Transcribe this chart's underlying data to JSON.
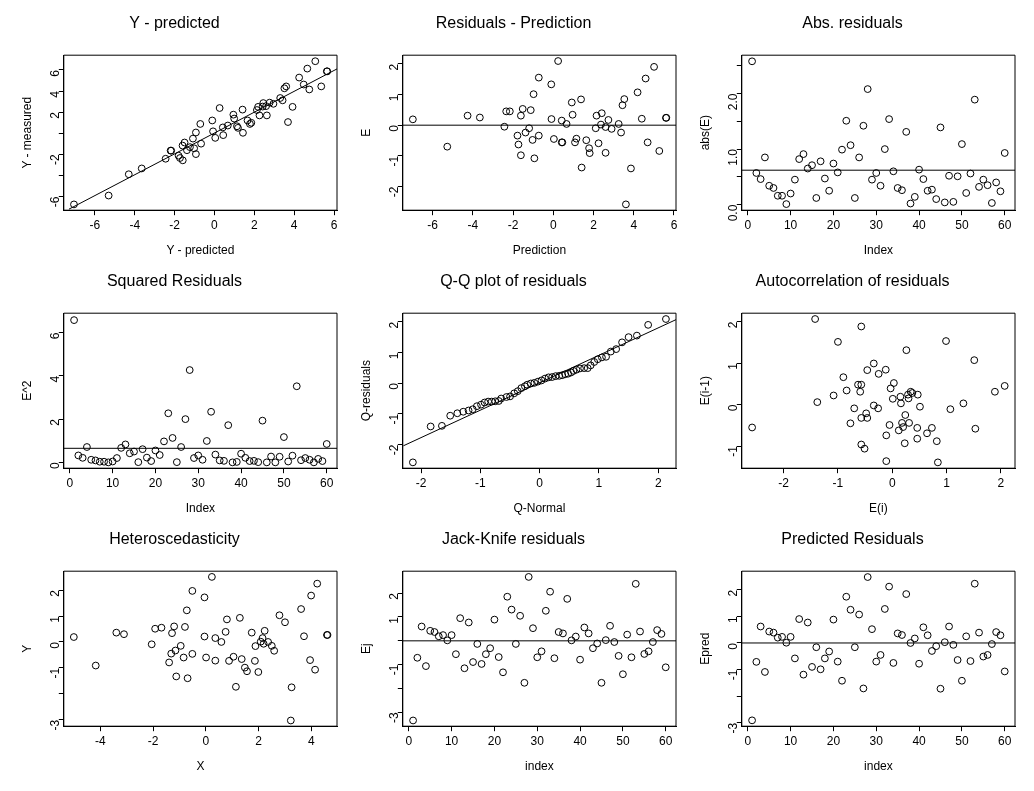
{
  "chart_data": [
    {
      "type": "scatter",
      "title": "Y - predicted",
      "xlabel": "Y - predicted",
      "ylabel": "Y - measured",
      "marker": "circle",
      "xlim": [
        -7.56,
        6.15
      ],
      "ylim": [
        -7.3,
        7.4
      ],
      "xticks": [
        -6,
        -4,
        -2,
        0,
        2,
        4,
        6
      ],
      "yticks": [
        -6,
        {
          "value": -4,
          "label": null
        },
        -2,
        {
          "value": 0,
          "label": null
        },
        2,
        4,
        6
      ],
      "series": [
        {
          "color": "#000000",
          "x": [
            -7.05,
            -5.31,
            -4.3,
            -3.65,
            -2.45,
            -2.2,
            -2.17,
            -1.8,
            -1.73,
            -1.59,
            -1.6,
            -1.5,
            -1.38,
            -1.23,
            -1.08,
            -1.02,
            -0.93,
            -0.93,
            -0.67,
            -0.71,
            -0.11,
            -0.07,
            0.04,
            0.26,
            0.42,
            0.44,
            0.67,
            0.95,
            0.99,
            1.13,
            1.18,
            1.41,
            1.43,
            1.66,
            1.78,
            1.85,
            2.13,
            2.19,
            2.26,
            2.42,
            2.45,
            2.59,
            2.63,
            2.77,
            2.96,
            3.3,
            3.42,
            3.51,
            3.6,
            3.69,
            3.92,
            4.25,
            4.48,
            4.66,
            4.76,
            5.06,
            5.36,
            5.64,
            5.66
          ],
          "values": [
            -6.75,
            -5.91,
            -3.89,
            -3.34,
            -2.42,
            -1.65,
            -1.65,
            -2.13,
            -2.35,
            -2.57,
            -1.17,
            -0.88,
            -1.61,
            -1.32,
            -0.51,
            -1.43,
            -1.98,
            0.07,
            -0.99,
            0.88,
            1.21,
            0.18,
            -0.44,
            2.39,
            0.55,
            -0.18,
            0.73,
            1.76,
            1.39,
            0.66,
            0.51,
            2.24,
            0.04,
            1.21,
            0.88,
            0.99,
            2.2,
            2.5,
            1.69,
            2.53,
            2.86,
            2.57,
            1.69,
            2.9,
            2.79,
            3.34,
            3.12,
            4.26,
            4.44,
            1.06,
            2.5,
            5.28,
            4.62,
            6.13,
            4.15,
            6.83,
            4.44,
            5.87,
            5.87
          ]
        },
        {
          "type": "line",
          "color": "#000000",
          "marker": "none",
          "x": [
            -7.3,
            6.15
          ],
          "values": [
            -7.2,
            6.1
          ]
        }
      ]
    },
    {
      "type": "scatter",
      "title": "Residuals - Prediction",
      "xlabel": "Prediction",
      "ylabel": "E",
      "marker": "circle",
      "xlim": [
        -7.48,
        6.1
      ],
      "ylim": [
        -2.77,
        2.28
      ],
      "xticks": [
        -6,
        -4,
        -2,
        0,
        2,
        4,
        6
      ],
      "yticks": [
        -2,
        -1,
        0,
        1,
        2
      ],
      "ref_lines": [
        {
          "axis": "y",
          "value": 0,
          "color": "#000000"
        }
      ],
      "series": [
        {
          "color": "#000000",
          "x": [
            -6.98,
            -5.27,
            -4.26,
            -3.65,
            -2.43,
            -2.34,
            -2.16,
            -1.78,
            -1.73,
            -1.61,
            -1.61,
            -1.52,
            -1.38,
            -1.2,
            -1.12,
            -1.03,
            -0.98,
            -0.94,
            -0.72,
            -0.72,
            -0.1,
            -0.09,
            0.03,
            0.24,
            0.42,
            0.42,
            0.45,
            0.66,
            0.92,
            0.96,
            1.08,
            1.15,
            1.38,
            1.41,
            1.64,
            1.78,
            1.81,
            2.11,
            2.15,
            2.25,
            2.41,
            2.37,
            2.6,
            2.6,
            2.74,
            2.9,
            3.25,
            3.37,
            3.44,
            3.53,
            3.61,
            3.86,
            4.19,
            4.4,
            4.59,
            4.69,
            5.01,
            5.27,
            5.6,
            5.62
          ],
          "values": [
            0.19,
            -0.7,
            0.31,
            0.25,
            -0.05,
            0.45,
            0.45,
            -0.34,
            -0.63,
            -0.98,
            0.31,
            0.53,
            -0.24,
            -0.1,
            0.49,
            -0.48,
            1.01,
            -1.08,
            1.55,
            -0.34,
            1.33,
            0.2,
            -0.45,
            2.09,
            0.15,
            -0.56,
            -0.56,
            0.04,
            0.74,
            0.34,
            -0.56,
            -0.44,
            0.84,
            -1.38,
            -0.49,
            -0.75,
            -0.91,
            -0.1,
            0.31,
            -0.59,
            0.39,
            0.02,
            -0.06,
            -0.9,
            0.17,
            -0.12,
            0.04,
            -0.24,
            0.65,
            0.85,
            -2.58,
            -1.41,
            1.07,
            0.21,
            1.52,
            -0.56,
            1.9,
            -0.84,
            0.24,
            0.24
          ]
        }
      ]
    },
    {
      "type": "scatter",
      "title": "Abs. residuals",
      "xlabel": "Index",
      "ylabel": "abs(E)",
      "marker": "circle",
      "xlim": [
        -1.4,
        62.4
      ],
      "ylim": [
        -0.1,
        2.69
      ],
      "xticks": [
        0,
        10,
        20,
        30,
        40,
        50,
        60
      ],
      "yticks": [
        {
          "value": 0,
          "label": "0.0"
        },
        {
          "value": 0.5,
          "label": null
        },
        {
          "value": 1,
          "label": "1.0"
        },
        {
          "value": 1.5,
          "label": null
        },
        {
          "value": 2,
          "label": "2.0"
        },
        {
          "value": 2.5,
          "label": null
        }
      ],
      "ref_lines": [
        {
          "axis": "y",
          "value": 0.62,
          "color": "#000000"
        }
      ],
      "series": [
        {
          "color": "#000000",
          "x": [
            1,
            2,
            3,
            4,
            5,
            6,
            7,
            8,
            9,
            10,
            11,
            12,
            13,
            14,
            15,
            16,
            17,
            18,
            19,
            20,
            21,
            22,
            23,
            24,
            25,
            26,
            27,
            28,
            29,
            30,
            31,
            32,
            33,
            34,
            35,
            36,
            37,
            38,
            39,
            40,
            41,
            42,
            43,
            44,
            45,
            46,
            47,
            48,
            49,
            50,
            51,
            52,
            53,
            54,
            55,
            56,
            57,
            58,
            59,
            60
          ],
          "values": [
            2.58,
            0.57,
            0.46,
            0.85,
            0.34,
            0.3,
            0.16,
            0.16,
            0.01,
            0.2,
            0.45,
            0.82,
            0.91,
            0.65,
            0.71,
            0.12,
            0.78,
            0.47,
            0.25,
            0.74,
            0.58,
            0.99,
            1.51,
            1.07,
            0.12,
            0.85,
            1.42,
            2.08,
            0.45,
            0.57,
            0.34,
            1.0,
            1.54,
            0.6,
            0.3,
            0.26,
            1.31,
            0.02,
            0.14,
            0.63,
            0.46,
            0.25,
            0.27,
            0.1,
            1.39,
            0.04,
            0.52,
            0.05,
            0.51,
            1.09,
            0.21,
            0.56,
            1.89,
            0.32,
            0.45,
            0.35,
            0.03,
            0.4,
            0.24,
            0.93
          ]
        }
      ]
    },
    {
      "type": "scatter",
      "title": "Squared Residuals",
      "xlabel": "Index",
      "ylabel": "E^2",
      "marker": "circle",
      "xlim": [
        -1.4,
        62.4
      ],
      "ylim": [
        -0.27,
        6.9
      ],
      "xticks": [
        0,
        10,
        20,
        30,
        40,
        50,
        60
      ],
      "yticks": [
        0,
        2,
        4,
        6
      ],
      "ref_lines": [
        {
          "axis": "y",
          "value": 0.65,
          "color": "#000000"
        }
      ],
      "series": [
        {
          "color": "#000000",
          "x": [
            1,
            2,
            3,
            4,
            5,
            6,
            7,
            8,
            9,
            10,
            11,
            12,
            13,
            14,
            15,
            16,
            17,
            18,
            19,
            20,
            21,
            22,
            23,
            24,
            25,
            26,
            27,
            28,
            29,
            30,
            31,
            32,
            33,
            34,
            35,
            36,
            37,
            38,
            39,
            40,
            41,
            42,
            43,
            44,
            45,
            46,
            47,
            48,
            49,
            50,
            51,
            52,
            53,
            54,
            55,
            56,
            57,
            58,
            59,
            60
          ],
          "values": [
            6.58,
            0.32,
            0.21,
            0.71,
            0.12,
            0.09,
            0.03,
            0.03,
            0,
            0.04,
            0.2,
            0.67,
            0.83,
            0.42,
            0.5,
            0.01,
            0.61,
            0.22,
            0.06,
            0.55,
            0.34,
            0.97,
            2.27,
            1.13,
            0.01,
            0.71,
            2.0,
            4.27,
            0.2,
            0.32,
            0.12,
            0.99,
            2.34,
            0.36,
            0.09,
            0.07,
            1.72,
            0,
            0.02,
            0.4,
            0.21,
            0.06,
            0.07,
            0.01,
            1.93,
            0,
            0.27,
            0,
            0.26,
            1.17,
            0.04,
            0.31,
            3.52,
            0.1,
            0.2,
            0.12,
            0,
            0.16,
            0.06,
            0.85
          ]
        }
      ]
    },
    {
      "type": "scatter",
      "title": "Q-Q plot of residuals",
      "xlabel": "Q-Normal",
      "ylabel": "Q-residuals",
      "marker": "circle",
      "xlim": [
        -2.31,
        2.3
      ],
      "ylim": [
        -2.77,
        2.28
      ],
      "xticks": [
        -2,
        -1,
        0,
        1,
        2
      ],
      "yticks": [
        -2,
        -1,
        0,
        1,
        2
      ],
      "series": [
        {
          "color": "#000000",
          "x": [
            -2.14,
            -1.84,
            -1.65,
            -1.51,
            -1.39,
            -1.29,
            -1.2,
            -1.13,
            -1.06,
            -0.99,
            -0.93,
            -0.87,
            -0.81,
            -0.75,
            -0.69,
            -0.65,
            -0.56,
            -0.5,
            -0.43,
            -0.37,
            -0.31,
            -0.25,
            -0.21,
            -0.15,
            -0.09,
            -0.03,
            0.03,
            0.09,
            0.15,
            0.21,
            0.27,
            0.33,
            0.38,
            0.43,
            0.48,
            0.53,
            0.57,
            0.62,
            0.68,
            0.75,
            0.81,
            0.86,
            0.92,
            0.98,
            1.05,
            1.12,
            1.2,
            1.29,
            1.39,
            1.5,
            1.64,
            1.83,
            2.13
          ],
          "values": [
            -2.58,
            -1.41,
            -1.39,
            -1.06,
            -0.98,
            -0.93,
            -0.89,
            -0.85,
            -0.75,
            -0.7,
            -0.63,
            -0.6,
            -0.6,
            -0.59,
            -0.58,
            -0.5,
            -0.45,
            -0.43,
            -0.33,
            -0.26,
            -0.16,
            -0.1,
            -0.05,
            -0.01,
            0.01,
            0.05,
            0.09,
            0.15,
            0.19,
            0.2,
            0.23,
            0.24,
            0.26,
            0.29,
            0.31,
            0.35,
            0.4,
            0.44,
            0.48,
            0.49,
            0.49,
            0.58,
            0.69,
            0.78,
            0.84,
            0.86,
            1.03,
            1.11,
            1.33,
            1.5,
            1.55,
            1.9,
            2.09
          ]
        },
        {
          "type": "line",
          "color": "#000000",
          "marker": "none",
          "x": [
            -2.3,
            2.3
          ],
          "values": [
            -2.04,
            2.07
          ]
        }
      ]
    },
    {
      "type": "scatter",
      "title": "Autocorrelation of residuals",
      "xlabel": "E(i)",
      "ylabel": "E(i-1)",
      "marker": "circle",
      "xlim": [
        -2.77,
        2.26
      ],
      "ylim": [
        -1.53,
        2.2
      ],
      "xticks": [
        -2,
        -1,
        0,
        1,
        2
      ],
      "yticks": [
        -1,
        0,
        1,
        2
      ],
      "series": [
        {
          "color": "#000000",
          "x": [
            -2.58,
            -1.42,
            -1.38,
            -1.08,
            -1.0,
            -0.9,
            -0.84,
            -0.77,
            -0.7,
            -0.63,
            -0.59,
            -0.57,
            -0.57,
            -0.57,
            -0.57,
            -0.51,
            -0.48,
            -0.46,
            -0.46,
            -0.34,
            -0.34,
            -0.25,
            -0.26,
            -0.12,
            -0.11,
            -0.11,
            -0.05,
            -0.03,
            0.01,
            0.03,
            0.12,
            0.15,
            0.16,
            0.18,
            0.2,
            0.23,
            0.24,
            0.26,
            0.29,
            0.3,
            0.31,
            0.34,
            0.37,
            0.46,
            0.46,
            0.47,
            0.51,
            0.64,
            0.73,
            0.82,
            0.84,
            0.99,
            1.07,
            1.31,
            1.51,
            1.53,
            1.89,
            2.07
          ],
          "values": [
            -0.55,
            2.06,
            0.06,
            0.22,
            1.51,
            0.66,
            0.34,
            -0.45,
            -0.09,
            0.48,
            0.31,
            0.48,
            1.88,
            -0.32,
            -0.96,
            -1.06,
            -0.21,
            -0.32,
            0.83,
            0.99,
            -0.02,
            0.74,
            -0.09,
            0.84,
            -0.74,
            -1.36,
            -0.49,
            0.39,
            0.14,
            0.52,
            -0.62,
            0.19,
            0.03,
            -0.44,
            -0.54,
            -0.93,
            -0.25,
            1.31,
            0.24,
            0.15,
            -0.44,
            0.31,
            0.28,
            -0.56,
            -0.82,
            0.24,
            -0.05,
            -0.69,
            -0.56,
            -0.88,
            -1.39,
            1.53,
            -0.11,
            0.03,
            1.07,
            -0.58,
            0.31,
            0.45
          ]
        }
      ]
    },
    {
      "type": "scatter",
      "title": "Heteroscedasticity",
      "xlabel": "X",
      "ylabel": "Y",
      "marker": "circle",
      "xlim": [
        -5.38,
        4.97
      ],
      "ylim": [
        -3.25,
        2.73
      ],
      "xticks": [
        -4,
        -2,
        0,
        2,
        4
      ],
      "yticks": [
        -3,
        {
          "value": -2,
          "label": null
        },
        -1,
        0,
        1,
        2
      ],
      "series": [
        {
          "color": "#000000",
          "x": [
            -5.0,
            -4.17,
            -3.39,
            -3.1,
            -2.05,
            -1.92,
            -1.68,
            -1.39,
            -1.31,
            -1.28,
            -1.2,
            -1.15,
            -1.12,
            -0.95,
            -0.84,
            -0.79,
            -0.72,
            -0.69,
            -0.51,
            -0.51,
            -0.05,
            -0.05,
            0.01,
            0.23,
            0.36,
            0.36,
            0.59,
            0.75,
            0.8,
            0.88,
            1.05,
            1.14,
            1.29,
            1.36,
            1.48,
            1.56,
            1.74,
            1.86,
            1.88,
            1.99,
            2.08,
            2.15,
            2.19,
            2.23,
            2.36,
            2.5,
            2.59,
            2.79,
            3.0,
            3.22,
            3.25,
            3.61,
            3.72,
            3.95,
            3.99,
            4.14,
            4.22,
            4.59,
            4.61
          ],
          "values": [
            0.19,
            -0.91,
            0.36,
            0.3,
            -0.09,
            0.51,
            0.55,
            -0.79,
            -0.45,
            0.34,
            0.6,
            -0.33,
            -1.33,
            -0.15,
            -0.6,
            0.58,
            1.22,
            -1.4,
            1.97,
            -0.46,
            1.72,
            0.21,
            -0.6,
            2.51,
            0.15,
            -0.72,
            0.0,
            0.39,
            0.87,
            -0.73,
            -0.57,
            -1.73,
            0.93,
            -0.66,
            -0.99,
            -1.13,
            0.36,
            -0.73,
            -0.16,
            -1.16,
            0.01,
            0.15,
            -0.07,
            0.43,
            0.0,
            -0.15,
            -0.34,
            1.03,
            0.76,
            -3.03,
            -1.75,
            1.27,
            0.22,
            -0.7,
            1.79,
            -1.07,
            2.25,
            0.27,
            0.27
          ]
        }
      ]
    },
    {
      "type": "scatter",
      "title": "Jack-Knife residuals",
      "xlabel": "index",
      "ylabel": "Ej",
      "marker": "circle",
      "xlim": [
        -1.4,
        62.4
      ],
      "ylim": [
        -3.58,
        2.92
      ],
      "xticks": [
        0,
        10,
        20,
        30,
        40,
        50,
        60
      ],
      "yticks": [
        -3,
        {
          "value": -2,
          "label": null
        },
        -1,
        {
          "value": 0,
          "label": null
        },
        1,
        2
      ],
      "ref_lines": [
        {
          "axis": "y",
          "value": 0,
          "color": "#000000"
        }
      ],
      "series": [
        {
          "color": "#000000",
          "x": [
            1,
            2,
            3,
            4,
            5,
            6,
            7,
            8,
            9,
            10,
            11,
            12,
            13,
            14,
            15,
            16,
            17,
            18,
            19,
            20,
            21,
            22,
            23,
            24,
            25,
            26,
            27,
            28,
            29,
            30,
            31,
            32,
            33,
            34,
            35,
            36,
            37,
            38,
            39,
            40,
            41,
            42,
            43,
            44,
            45,
            46,
            47,
            48,
            49,
            50,
            51,
            52,
            53,
            54,
            55,
            56,
            57,
            58,
            59,
            60
          ],
          "values": [
            -3.34,
            -0.71,
            0.6,
            -1.06,
            0.42,
            0.37,
            0.19,
            0.24,
            0.02,
            0.24,
            -0.56,
            0.95,
            -1.15,
            0.77,
            -0.89,
            -0.13,
            -0.97,
            -0.56,
            -0.31,
            0.89,
            -0.68,
            -1.32,
            1.85,
            1.31,
            -0.13,
            1.05,
            -1.76,
            2.68,
            0.53,
            -0.69,
            -0.44,
            1.26,
            2.06,
            -0.73,
            0.37,
            0.31,
            1.76,
            0.02,
            0.18,
            -0.79,
            0.56,
            0.31,
            -0.31,
            -0.11,
            -1.76,
            0.03,
            0.63,
            -0.05,
            -0.63,
            -1.4,
            0.26,
            -0.69,
            2.39,
            0.39,
            -0.55,
            -0.44,
            -0.05,
            0.45,
            0.29,
            -1.11
          ]
        }
      ]
    },
    {
      "type": "scatter",
      "title": "Predicted Residuals",
      "xlabel": "index",
      "ylabel": "Epred",
      "marker": "circle",
      "xlim": [
        -1.4,
        62.4
      ],
      "ylim": [
        -3.13,
        2.7
      ],
      "xticks": [
        0,
        10,
        20,
        30,
        40,
        50,
        60
      ],
      "yticks": [
        -3,
        {
          "value": -2,
          "label": null
        },
        -1,
        0,
        1,
        2
      ],
      "ref_lines": [
        {
          "axis": "y",
          "value": 0,
          "color": "#000000"
        }
      ],
      "series": [
        {
          "color": "#000000",
          "x": [
            1,
            2,
            3,
            4,
            5,
            6,
            7,
            8,
            9,
            10,
            11,
            12,
            13,
            14,
            15,
            16,
            17,
            18,
            19,
            20,
            21,
            22,
            23,
            24,
            25,
            26,
            27,
            28,
            29,
            30,
            31,
            32,
            33,
            34,
            35,
            36,
            37,
            38,
            39,
            40,
            41,
            42,
            43,
            44,
            45,
            46,
            47,
            48,
            49,
            50,
            51,
            52,
            53,
            54,
            55,
            56,
            57,
            58,
            59,
            60
          ],
          "values": [
            -2.91,
            -0.71,
            0.62,
            -1.09,
            0.43,
            0.39,
            0.2,
            0.23,
            0.01,
            0.23,
            -0.58,
            0.9,
            -1.19,
            0.77,
            -0.9,
            -0.16,
            -0.99,
            -0.58,
            -0.32,
            0.88,
            -0.7,
            -1.42,
            1.74,
            1.25,
            -0.16,
            1.07,
            -1.71,
            2.48,
            0.52,
            -0.7,
            -0.45,
            1.28,
            2.12,
            -0.75,
            0.36,
            0.3,
            1.84,
            0,
            0.17,
            -0.78,
            0.59,
            0.29,
            -0.3,
            -0.12,
            -1.72,
            0.03,
            0.62,
            -0.07,
            -0.64,
            -1.42,
            0.25,
            -0.68,
            2.23,
            0.39,
            -0.51,
            -0.45,
            -0.04,
            0.41,
            0.29,
            -1.07
          ]
        }
      ]
    }
  ]
}
